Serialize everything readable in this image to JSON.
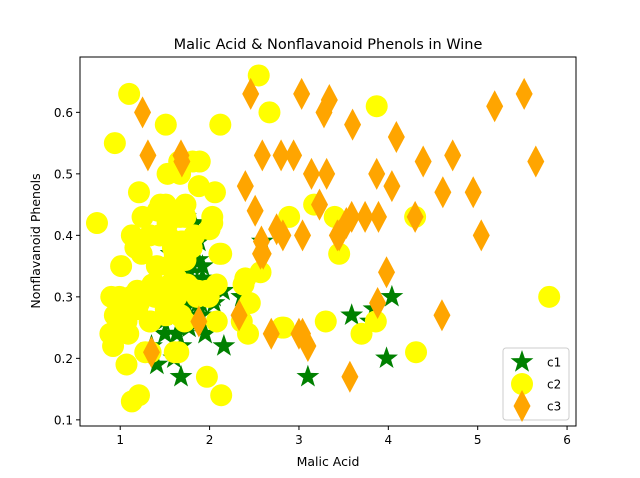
{
  "chart_data": {
    "type": "scatter",
    "title": "Malic Acid & Nonflavanoid Phenols in Wine",
    "xlabel": "Malic Acid",
    "ylabel": "Nonflavanoid Phenols",
    "xlim": [
      0.55,
      6.1
    ],
    "ylim": [
      0.09,
      0.69
    ],
    "xticks": [
      1,
      2,
      3,
      4,
      5,
      6
    ],
    "yticks": [
      0.1,
      0.2,
      0.3,
      0.4,
      0.5,
      0.6
    ],
    "grid": false,
    "legend_position": "lower right",
    "series": [
      {
        "name": "c1",
        "marker": "star",
        "color": "#008000",
        "points": [
          [
            1.71,
            0.28
          ],
          [
            1.78,
            0.26
          ],
          [
            2.36,
            0.3
          ],
          [
            1.95,
            0.24
          ],
          [
            2.59,
            0.39
          ],
          [
            1.76,
            0.34
          ],
          [
            1.87,
            0.3
          ],
          [
            2.15,
            0.31
          ],
          [
            1.64,
            0.29
          ],
          [
            1.35,
            0.22
          ],
          [
            2.16,
            0.22
          ],
          [
            1.48,
            0.26
          ],
          [
            1.73,
            0.29
          ],
          [
            1.73,
            0.43
          ],
          [
            1.87,
            0.29
          ],
          [
            1.81,
            0.3
          ],
          [
            1.92,
            0.35
          ],
          [
            1.57,
            0.37
          ],
          [
            1.59,
            0.32
          ],
          [
            3.1,
            0.17
          ],
          [
            1.63,
            0.24
          ],
          [
            3.8,
            0.26
          ],
          [
            1.86,
            0.3
          ],
          [
            1.6,
            0.2
          ],
          [
            1.81,
            0.3
          ],
          [
            2.05,
            0.3
          ],
          [
            1.77,
            0.25
          ],
          [
            1.72,
            0.26
          ],
          [
            1.9,
            0.29
          ],
          [
            1.68,
            0.17
          ],
          [
            1.5,
            0.24
          ],
          [
            1.66,
            0.3
          ],
          [
            1.83,
            0.42
          ],
          [
            1.53,
            0.32
          ],
          [
            1.8,
            0.35
          ],
          [
            1.81,
            0.32
          ],
          [
            1.64,
            0.24
          ],
          [
            1.65,
            0.32
          ],
          [
            1.5,
            0.27
          ],
          [
            3.59,
            0.27
          ],
          [
            1.71,
            0.3
          ],
          [
            3.84,
            0.28
          ],
          [
            1.88,
            0.39
          ],
          [
            3.98,
            0.2
          ],
          [
            4.04,
            0.3
          ],
          [
            1.68,
            0.3
          ],
          [
            1.68,
            0.22
          ],
          [
            1.73,
            0.26
          ],
          [
            2.05,
            0.29
          ],
          [
            1.9,
            0.27
          ],
          [
            1.5,
            0.28
          ],
          [
            1.81,
            0.31
          ],
          [
            1.87,
            0.36
          ],
          [
            1.6,
            0.29
          ],
          [
            1.67,
            0.32
          ],
          [
            1.81,
            0.38
          ],
          [
            1.92,
            0.33
          ],
          [
            1.41,
            0.19
          ],
          [
            1.77,
            0.34
          ]
        ]
      },
      {
        "name": "c2",
        "marker": "circle",
        "color": "#ffff00",
        "points": [
          [
            0.94,
            0.55
          ],
          [
            1.1,
            0.63
          ],
          [
            1.36,
            0.32
          ],
          [
            1.25,
            0.43
          ],
          [
            1.13,
            0.4
          ],
          [
            1.45,
            0.45
          ],
          [
            1.21,
            0.47
          ],
          [
            1.01,
            0.35
          ],
          [
            1.17,
            0.38
          ],
          [
            0.94,
            0.27
          ],
          [
            1.19,
            0.31
          ],
          [
            1.61,
            0.21
          ],
          [
            1.51,
            0.58
          ],
          [
            1.66,
            0.52
          ],
          [
            1.67,
            0.5
          ],
          [
            1.09,
            0.24
          ],
          [
            1.88,
            0.48
          ],
          [
            0.9,
            0.3
          ],
          [
            2.89,
            0.43
          ],
          [
            0.99,
            0.3
          ],
          [
            3.87,
            0.61
          ],
          [
            0.92,
            0.22
          ],
          [
            1.81,
            0.52
          ],
          [
            1.13,
            0.13
          ],
          [
            3.86,
            0.26
          ],
          [
            0.89,
            0.24
          ],
          [
            0.98,
            0.29
          ],
          [
            1.61,
            0.37
          ],
          [
            1.67,
            0.43
          ],
          [
            2.06,
            0.47
          ],
          [
            1.33,
            0.4
          ],
          [
            1.83,
            0.4
          ],
          [
            1.51,
            0.27
          ],
          [
            1.53,
            0.42
          ],
          [
            2.83,
            0.25
          ],
          [
            1.99,
            0.3
          ],
          [
            1.52,
            0.29
          ],
          [
            2.12,
            0.58
          ],
          [
            1.41,
            0.35
          ],
          [
            1.07,
            0.19
          ],
          [
            3.17,
            0.45
          ],
          [
            2.08,
            0.32
          ],
          [
            1.34,
            0.26
          ],
          [
            2.45,
            0.29
          ],
          [
            1.72,
            0.26
          ],
          [
            0.74,
            0.42
          ],
          [
            1.21,
            0.14
          ],
          [
            1.39,
            0.32
          ],
          [
            1.24,
            0.37
          ],
          [
            1.65,
            0.21
          ],
          [
            2.13,
            0.37
          ],
          [
            1.53,
            0.5
          ],
          [
            2.4,
            0.33
          ],
          [
            1.63,
            0.33
          ],
          [
            1.68,
            0.27
          ],
          [
            1.73,
            0.45
          ],
          [
            1.59,
            0.38
          ],
          [
            2.11,
            0.37
          ],
          [
            2.81,
            0.25
          ],
          [
            1.87,
            0.31
          ],
          [
            1.61,
            0.36
          ],
          [
            1.97,
            0.17
          ],
          [
            1.66,
            0.27
          ],
          [
            1.36,
            0.32
          ],
          [
            1.48,
            0.44
          ],
          [
            2.43,
            0.24
          ],
          [
            3.7,
            0.24
          ],
          [
            1.51,
            0.28
          ],
          [
            4.3,
            0.43
          ],
          [
            2.03,
            0.43
          ],
          [
            1.39,
            0.3
          ],
          [
            2.13,
            0.14
          ],
          [
            1.57,
            0.31
          ],
          [
            3.45,
            0.37
          ],
          [
            1.73,
            0.36
          ],
          [
            1.86,
            0.3
          ],
          [
            2.36,
            0.26
          ],
          [
            3.3,
            0.26
          ],
          [
            1.28,
            0.21
          ],
          [
            2.67,
            0.6
          ],
          [
            2.0,
            0.41
          ],
          [
            2.08,
            0.26
          ],
          [
            1.53,
            0.4
          ],
          [
            1.7,
            0.39
          ],
          [
            2.55,
            0.66
          ],
          [
            1.63,
            0.3
          ],
          [
            1.44,
            0.4
          ],
          [
            4.31,
            0.21
          ],
          [
            2.38,
            0.32
          ],
          [
            1.33,
            0.4
          ],
          [
            5.8,
            0.3
          ],
          [
            2.57,
            0.34
          ],
          [
            3.4,
            0.43
          ],
          [
            1.33,
            0.26
          ],
          [
            1.8,
            0.38
          ],
          [
            1.47,
            0.3
          ],
          [
            1.21,
            0.29
          ],
          [
            1.73,
            0.43
          ],
          [
            1.42,
            0.44
          ],
          [
            1.26,
            0.3
          ],
          [
            1.68,
            0.39
          ],
          [
            1.12,
            0.3
          ],
          [
            1.56,
            0.32
          ],
          [
            1.07,
            0.26
          ],
          [
            1.97,
            0.31
          ],
          [
            1.75,
            0.32
          ],
          [
            1.64,
            0.36
          ],
          [
            1.34,
            0.21
          ],
          [
            2.03,
            0.42
          ],
          [
            1.51,
            0.45
          ],
          [
            1.58,
            0.39
          ],
          [
            1.89,
            0.52
          ],
          [
            1.55,
            0.35
          ],
          [
            1.45,
            0.4
          ],
          [
            1.19,
            0.28
          ]
        ]
      },
      {
        "name": "c3",
        "marker": "thin_diamond",
        "color": "#ffa500",
        "points": [
          [
            1.25,
            0.6
          ],
          [
            1.31,
            0.53
          ],
          [
            1.68,
            0.53
          ],
          [
            1.69,
            0.52
          ],
          [
            2.4,
            0.48
          ],
          [
            2.51,
            0.44
          ],
          [
            2.46,
            0.63
          ],
          [
            2.59,
            0.53
          ],
          [
            2.8,
            0.53
          ],
          [
            2.94,
            0.53
          ],
          [
            3.03,
            0.63
          ],
          [
            3.14,
            0.5
          ],
          [
            3.23,
            0.45
          ],
          [
            3.28,
            0.6
          ],
          [
            3.31,
            0.5
          ],
          [
            3.34,
            0.62
          ],
          [
            3.6,
            0.58
          ],
          [
            4.09,
            0.56
          ],
          [
            4.39,
            0.52
          ],
          [
            3.87,
            0.5
          ],
          [
            4.04,
            0.48
          ],
          [
            4.61,
            0.47
          ],
          [
            4.72,
            0.53
          ],
          [
            4.95,
            0.47
          ],
          [
            5.19,
            0.61
          ],
          [
            5.52,
            0.63
          ],
          [
            5.65,
            0.52
          ],
          [
            3.98,
            0.34
          ],
          [
            3.88,
            0.29
          ],
          [
            3.57,
            0.17
          ],
          [
            3.59,
            0.43
          ],
          [
            3.74,
            0.43
          ],
          [
            3.89,
            0.43
          ],
          [
            3.45,
            0.4
          ],
          [
            3.43,
            0.4
          ],
          [
            3.53,
            0.42
          ],
          [
            3.04,
            0.4
          ],
          [
            2.82,
            0.4
          ],
          [
            2.75,
            0.41
          ],
          [
            2.58,
            0.39
          ],
          [
            2.57,
            0.37
          ],
          [
            4.3,
            0.43
          ],
          [
            4.6,
            0.27
          ],
          [
            5.04,
            0.4
          ],
          [
            3.0,
            0.24
          ],
          [
            3.1,
            0.22
          ],
          [
            2.69,
            0.24
          ],
          [
            2.33,
            0.27
          ],
          [
            1.88,
            0.26
          ],
          [
            1.35,
            0.21
          ],
          [
            3.04,
            0.24
          ],
          [
            2.6,
            0.37
          ]
        ]
      }
    ]
  }
}
